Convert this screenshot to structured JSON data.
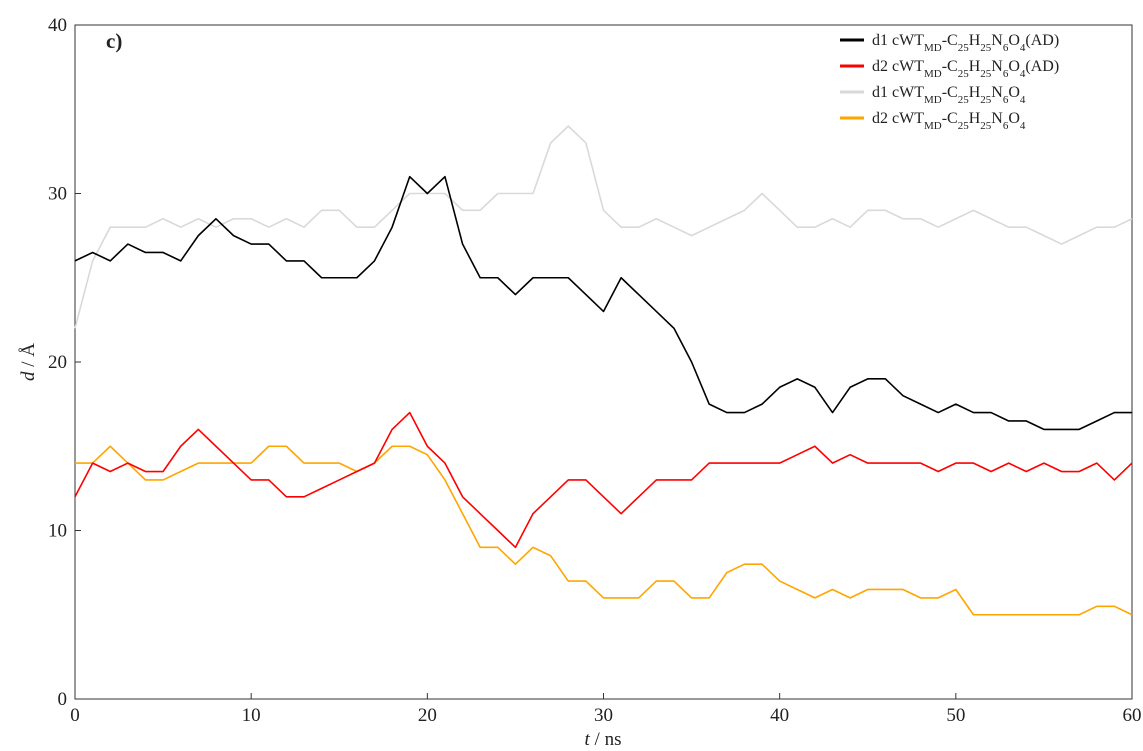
{
  "chart_data": {
    "type": "line",
    "panel_label": "c)",
    "xlabel": "t / ns",
    "ylabel": "d / Å",
    "x": [
      0,
      1,
      2,
      3,
      4,
      5,
      6,
      7,
      8,
      9,
      10,
      11,
      12,
      13,
      14,
      15,
      16,
      17,
      18,
      19,
      20,
      21,
      22,
      23,
      24,
      25,
      26,
      27,
      28,
      29,
      30,
      31,
      32,
      33,
      34,
      35,
      36,
      37,
      38,
      39,
      40,
      41,
      42,
      43,
      44,
      45,
      46,
      47,
      48,
      49,
      50,
      51,
      52,
      53,
      54,
      55,
      56,
      57,
      58,
      59,
      60
    ],
    "xlim": [
      0,
      60
    ],
    "xticks": [
      0,
      10,
      20,
      30,
      40,
      50,
      60
    ],
    "ylim": [
      0,
      40
    ],
    "yticks": [
      0,
      10,
      20,
      30,
      40
    ],
    "legend": "upper right",
    "series": [
      {
        "name": "d1 cWTMD-C25H25N6O4(AD)",
        "color": "#000000",
        "values": [
          26,
          26.5,
          26,
          27,
          26.5,
          26.5,
          26,
          27.5,
          28.5,
          27.5,
          27,
          27,
          26,
          26,
          25,
          25,
          25,
          26,
          28,
          31,
          30,
          31,
          27,
          25,
          25,
          24,
          25,
          25,
          25,
          24,
          23,
          25,
          24,
          23,
          22,
          20,
          17.5,
          17,
          17,
          17.5,
          18.5,
          19,
          18.5,
          17,
          18.5,
          19,
          19,
          18,
          17.5,
          17,
          17.5,
          17,
          17,
          16.5,
          16.5,
          16,
          16,
          16,
          16.5,
          17,
          17
        ]
      },
      {
        "name": "d2 cWTMD-C25H25N6O4(AD)",
        "color": "#ff0000",
        "values": [
          12,
          14,
          13.5,
          14,
          13.5,
          13.5,
          15,
          16,
          15,
          14,
          13,
          13,
          12,
          12,
          12.5,
          13,
          13.5,
          14,
          16,
          17,
          15,
          14,
          12,
          11,
          10,
          9,
          11,
          12,
          13,
          13,
          12,
          11,
          12,
          13,
          13,
          13,
          14,
          14,
          14,
          14,
          14,
          14.5,
          15,
          14,
          14.5,
          14,
          14,
          14,
          14,
          13.5,
          14,
          14,
          13.5,
          14,
          13.5,
          14,
          13.5,
          13.5,
          14,
          13,
          14
        ]
      },
      {
        "name": "d1 cWTMD-C25H25N6O4",
        "color": "#d9d9d9",
        "values": [
          22,
          26,
          28,
          28,
          28,
          28.5,
          28,
          28.5,
          28,
          28.5,
          28.5,
          28,
          28.5,
          28,
          29,
          29,
          28,
          28,
          29,
          30,
          30,
          30,
          29,
          29,
          30,
          30,
          30,
          33,
          34,
          33,
          29,
          28,
          28,
          28.5,
          28,
          27.5,
          28,
          28.5,
          29,
          30,
          29,
          28,
          28,
          28.5,
          28,
          29,
          29,
          28.5,
          28.5,
          28,
          28.5,
          29,
          28.5,
          28,
          28,
          27.5,
          27,
          27.5,
          28,
          28,
          28.5
        ]
      },
      {
        "name": "d2 cWTMD-C25H25N6O4",
        "color": "#ffa500",
        "values": [
          14,
          14,
          15,
          14,
          13,
          13,
          13.5,
          14,
          14,
          14,
          14,
          15,
          15,
          14,
          14,
          14,
          13.5,
          14,
          15,
          15,
          14.5,
          13,
          11,
          9,
          9,
          8,
          9,
          8.5,
          7,
          7,
          6,
          6,
          6,
          7,
          7,
          6,
          6,
          7.5,
          8,
          8,
          7,
          6.5,
          6,
          6.5,
          6,
          6.5,
          6.5,
          6.5,
          6,
          6,
          6.5,
          5,
          5,
          5,
          5,
          5,
          5,
          5,
          5.5,
          5.5,
          5
        ]
      }
    ]
  }
}
